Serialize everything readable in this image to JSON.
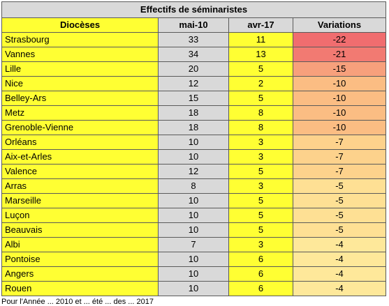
{
  "table": {
    "title": "Effectifs de séminaristes",
    "headers": [
      "Diocèses",
      "mai-10",
      "avr-17",
      "Variations"
    ],
    "rows": [
      {
        "diocese": "Strasbourg",
        "mai": "33",
        "avr": "11",
        "var": "-22",
        "color": "#f06d6f"
      },
      {
        "diocese": "Vannes",
        "mai": "34",
        "avr": "13",
        "var": "-21",
        "color": "#f27a72"
      },
      {
        "diocese": "Lille",
        "mai": "20",
        "avr": "5",
        "var": "-15",
        "color": "#f7a07c"
      },
      {
        "diocese": "Nice",
        "mai": "12",
        "avr": "2",
        "var": "-10",
        "color": "#fbbd83"
      },
      {
        "diocese": "Belley-Ars",
        "mai": "15",
        "avr": "5",
        "var": "-10",
        "color": "#fbbd83"
      },
      {
        "diocese": "Metz",
        "mai": "18",
        "avr": "8",
        "var": "-10",
        "color": "#fbbd83"
      },
      {
        "diocese": "Grenoble-Vienne",
        "mai": "18",
        "avr": "8",
        "var": "-10",
        "color": "#fbbd83"
      },
      {
        "diocese": "Orléans",
        "mai": "10",
        "avr": "3",
        "var": "-7",
        "color": "#fdd28c"
      },
      {
        "diocese": "Aix-et-Arles",
        "mai": "10",
        "avr": "3",
        "var": "-7",
        "color": "#fdd28c"
      },
      {
        "diocese": "Valence",
        "mai": "12",
        "avr": "5",
        "var": "-7",
        "color": "#fdd28c"
      },
      {
        "diocese": "Arras",
        "mai": "8",
        "avr": "3",
        "var": "-5",
        "color": "#fee094"
      },
      {
        "diocese": "Marseille",
        "mai": "10",
        "avr": "5",
        "var": "-5",
        "color": "#fee094"
      },
      {
        "diocese": "Luçon",
        "mai": "10",
        "avr": "5",
        "var": "-5",
        "color": "#fee094"
      },
      {
        "diocese": "Beauvais",
        "mai": "10",
        "avr": "5",
        "var": "-5",
        "color": "#fee094"
      },
      {
        "diocese": "Albi",
        "mai": "7",
        "avr": "3",
        "var": "-4",
        "color": "#fee89a"
      },
      {
        "diocese": "Pontoise",
        "mai": "10",
        "avr": "6",
        "var": "-4",
        "color": "#fee89a"
      },
      {
        "diocese": "Angers",
        "mai": "10",
        "avr": "6",
        "var": "-4",
        "color": "#fee89a"
      },
      {
        "diocese": "Rouen",
        "mai": "10",
        "avr": "6",
        "var": "-4",
        "color": "#fee89a"
      }
    ]
  },
  "footnote": "Pour l'Année ... 2010 et ... été ... des ... 2017"
}
